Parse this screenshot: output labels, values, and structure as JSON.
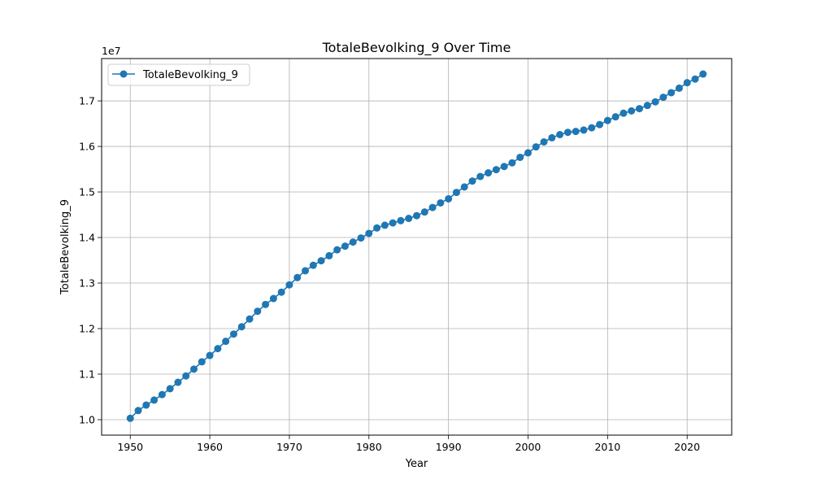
{
  "chart_data": {
    "type": "line",
    "title": "TotaleBevolking_9 Over Time",
    "xlabel": "Year",
    "ylabel": "TotaleBevolking_9",
    "y_offset_label": "1e7",
    "xlim": [
      1946.4,
      2025.6
    ],
    "ylim": [
      9660000,
      17930000
    ],
    "x_ticks": [
      1950,
      1960,
      1970,
      1980,
      1990,
      2000,
      2010,
      2020
    ],
    "y_ticks": [
      10000000,
      11000000,
      12000000,
      13000000,
      14000000,
      15000000,
      16000000,
      17000000
    ],
    "y_tick_labels": [
      "1.0",
      "1.1",
      "1.2",
      "1.3",
      "1.4",
      "1.5",
      "1.6",
      "1.7"
    ],
    "grid": true,
    "legend_position": "upper-left",
    "series": [
      {
        "name": "TotaleBevolking_9",
        "color": "#1f77b4",
        "marker": "circle",
        "x": [
          1950,
          1951,
          1952,
          1953,
          1954,
          1955,
          1956,
          1957,
          1958,
          1959,
          1960,
          1961,
          1962,
          1963,
          1964,
          1965,
          1966,
          1967,
          1968,
          1969,
          1970,
          1971,
          1972,
          1973,
          1974,
          1975,
          1976,
          1977,
          1978,
          1979,
          1980,
          1981,
          1982,
          1983,
          1984,
          1985,
          1986,
          1987,
          1988,
          1989,
          1990,
          1991,
          1992,
          1993,
          1994,
          1995,
          1996,
          1997,
          1998,
          1999,
          2000,
          2001,
          2002,
          2003,
          2004,
          2005,
          2006,
          2007,
          2008,
          2009,
          2010,
          2011,
          2012,
          2013,
          2014,
          2015,
          2016,
          2017,
          2018,
          2019,
          2020,
          2021,
          2022
        ],
        "values": [
          10030000,
          10200000,
          10320000,
          10430000,
          10550000,
          10680000,
          10820000,
          10960000,
          11110000,
          11270000,
          11410000,
          11560000,
          11720000,
          11880000,
          12040000,
          12210000,
          12380000,
          12530000,
          12660000,
          12800000,
          12960000,
          13120000,
          13270000,
          13390000,
          13490000,
          13600000,
          13730000,
          13810000,
          13900000,
          13990000,
          14090000,
          14210000,
          14270000,
          14320000,
          14370000,
          14420000,
          14480000,
          14560000,
          14660000,
          14760000,
          14850000,
          14990000,
          15110000,
          15240000,
          15340000,
          15420000,
          15490000,
          15560000,
          15640000,
          15760000,
          15860000,
          15990000,
          16100000,
          16190000,
          16260000,
          16310000,
          16330000,
          16360000,
          16410000,
          16480000,
          16570000,
          16650000,
          16730000,
          16780000,
          16830000,
          16900000,
          16980000,
          17080000,
          17180000,
          17280000,
          17400000,
          17480000,
          17590000
        ]
      }
    ]
  }
}
